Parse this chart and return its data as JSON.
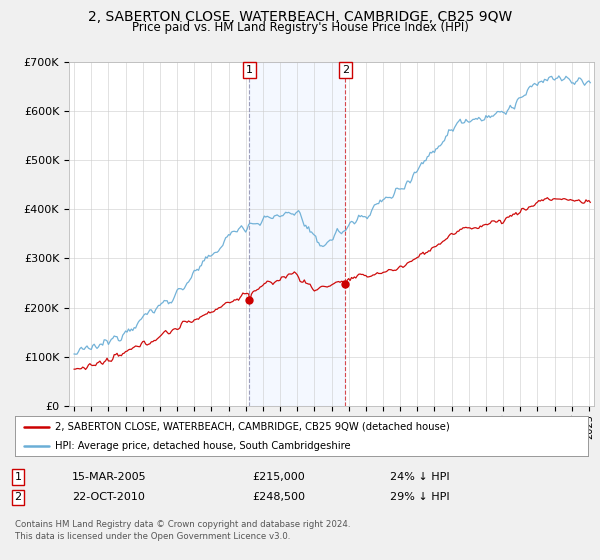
{
  "title": "2, SABERTON CLOSE, WATERBEACH, CAMBRIDGE, CB25 9QW",
  "subtitle": "Price paid vs. HM Land Registry's House Price Index (HPI)",
  "legend_line1": "2, SABERTON CLOSE, WATERBEACH, CAMBRIDGE, CB25 9QW (detached house)",
  "legend_line2": "HPI: Average price, detached house, South Cambridgeshire",
  "annotation1_label": "1",
  "annotation1_date": "15-MAR-2005",
  "annotation1_price": "£215,000",
  "annotation1_hpi": "24% ↓ HPI",
  "annotation1_year": 2005.21,
  "annotation1_value": 215000,
  "annotation2_label": "2",
  "annotation2_date": "22-OCT-2010",
  "annotation2_price": "£248,500",
  "annotation2_hpi": "29% ↓ HPI",
  "annotation2_year": 2010.81,
  "annotation2_value": 248500,
  "footer_line1": "Contains HM Land Registry data © Crown copyright and database right 2024.",
  "footer_line2": "This data is licensed under the Open Government Licence v3.0.",
  "hpi_color": "#6baed6",
  "price_color": "#cc0000",
  "vline1_color": "#aaaacc",
  "vline2_color": "#cc0000",
  "background_color": "#f0f0f0",
  "plot_bg_color": "#ffffff",
  "grid_color": "#cccccc",
  "ylim_min": 0,
  "ylim_max": 700000,
  "xlim_min": 1994.7,
  "xlim_max": 2025.3
}
